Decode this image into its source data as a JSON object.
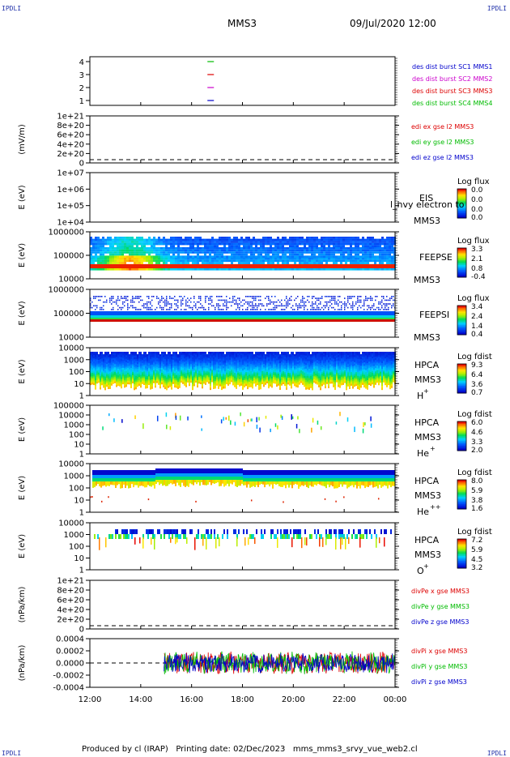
{
  "header": {
    "corner_label": "IPDLI",
    "spacecraft": "MMS3",
    "datetime": "09/Jul/2020 12:00"
  },
  "footer": {
    "text": "Produced by cl (IRAP)   Printing date: 02/Dec/2023   mms_mms3_srvy_vue_web2.cl"
  },
  "colors": {
    "series_blue": "#0000cc",
    "series_magenta": "#cc00cc",
    "series_red": "#dd0000",
    "series_green": "#00bb00"
  },
  "chart_data": [
    {
      "type": "line",
      "panel": "burst",
      "yticks": [
        "4",
        "3",
        "2",
        "1"
      ],
      "legend": [
        {
          "label": "des dist burst SC1 MMS1",
          "color": "#0000cc"
        },
        {
          "label": "des dist burst SC2 MMS2",
          "color": "#cc00cc"
        },
        {
          "label": "des dist burst SC3 MMS3",
          "color": "#dd0000"
        },
        {
          "label": "des dist burst SC4 MMS4",
          "color": "#00bb00"
        }
      ],
      "marks": [
        {
          "sc": 4,
          "t": "16:45",
          "color": "#00bb00"
        },
        {
          "sc": 3,
          "t": "16:45",
          "color": "#dd0000"
        },
        {
          "sc": 2,
          "t": "16:45",
          "color": "#cc00cc"
        },
        {
          "sc": 1,
          "t": "16:45",
          "color": "#0000cc"
        }
      ]
    },
    {
      "type": "line",
      "panel": "edi",
      "ylabel": "(mV/m)",
      "yticks": [
        "1e+21",
        "8e+20",
        "6e+20",
        "4e+20",
        "2e+20",
        "0"
      ],
      "legend": [
        {
          "label": "edi ex gse l2 MMS3",
          "color": "#dd0000"
        },
        {
          "label": "edi ey gse l2 MMS3",
          "color": "#00bb00"
        },
        {
          "label": "edi ez gse l2 MMS3",
          "color": "#0000cc"
        }
      ]
    },
    {
      "type": "heatmap",
      "panel": "eis",
      "ylabel": "E (eV)",
      "yticks": [
        "1e+07",
        "1e+06",
        "1e+05",
        "1e+04"
      ],
      "side_labels": [
        "EIS",
        "MMS3"
      ],
      "overlay_text": "l_hvy electron to",
      "colorbar_title": "Log flux",
      "colorbar_ticks": [
        "0.0",
        "0.0",
        "0.0",
        "0.0"
      ]
    },
    {
      "type": "heatmap",
      "panel": "feepse",
      "ylabel": "E (eV)",
      "yticks": [
        "1000000",
        "100000",
        "10000"
      ],
      "side_labels": [
        "FEEPSE",
        "MMS3"
      ],
      "colorbar_title": "Log flux",
      "colorbar_ticks": [
        "3.3",
        "2.1",
        "0.8",
        "-0.4"
      ]
    },
    {
      "type": "heatmap",
      "panel": "feepsi",
      "ylabel": "E (eV)",
      "yticks": [
        "1000000",
        "100000",
        "10000"
      ],
      "side_labels": [
        "FEEPSI",
        "MMS3"
      ],
      "colorbar_title": "Log flux",
      "colorbar_ticks": [
        "3.4",
        "2.4",
        "1.4",
        "0.4"
      ]
    },
    {
      "type": "heatmap",
      "panel": "hpca_h",
      "ylabel": "E (eV)",
      "yticks": [
        "10000",
        "1000",
        "100",
        "10",
        "1"
      ],
      "side_labels": [
        "HPCA",
        "MMS3"
      ],
      "species": "H",
      "charge": "+",
      "colorbar_title": "Log fdist",
      "colorbar_ticks": [
        "9.3",
        "6.4",
        "3.6",
        "0.7"
      ]
    },
    {
      "type": "heatmap",
      "panel": "hpca_he",
      "ylabel": "E (eV)",
      "yticks": [
        "100000",
        "10000",
        "1000",
        "100",
        "10",
        "1"
      ],
      "side_labels": [
        "HPCA",
        "MMS3"
      ],
      "species": "He",
      "charge": "+",
      "colorbar_title": "Log fdist",
      "colorbar_ticks": [
        "6.0",
        "4.6",
        "3.3",
        "2.0"
      ]
    },
    {
      "type": "heatmap",
      "panel": "hpca_hepp",
      "ylabel": "E (eV)",
      "yticks": [
        "10000",
        "1000",
        "100",
        "10",
        "1"
      ],
      "side_labels": [
        "HPCA",
        "MMS3"
      ],
      "species": "He",
      "charge": "++",
      "colorbar_title": "Log fdist",
      "colorbar_ticks": [
        "8.0",
        "5.9",
        "3.8",
        "1.6"
      ]
    },
    {
      "type": "heatmap",
      "panel": "hpca_o",
      "ylabel": "E (eV)",
      "yticks": [
        "10000",
        "1000",
        "100",
        "10",
        "1"
      ],
      "side_labels": [
        "HPCA",
        "MMS3"
      ],
      "species": "O",
      "charge": "+",
      "colorbar_title": "Log fdist",
      "colorbar_ticks": [
        "7.2",
        "5.9",
        "4.5",
        "3.2"
      ]
    },
    {
      "type": "line",
      "panel": "divpe",
      "ylabel": "(nPa/km)",
      "yticks": [
        "1e+21",
        "8e+20",
        "6e+20",
        "4e+20",
        "2e+20",
        "0"
      ],
      "legend": [
        {
          "label": "divPe x gse MMS3",
          "color": "#dd0000"
        },
        {
          "label": "divPe y gse MMS3",
          "color": "#00bb00"
        },
        {
          "label": "divPe z gse MMS3",
          "color": "#0000cc"
        }
      ]
    },
    {
      "type": "line",
      "panel": "divpi",
      "ylabel": "(nPa/km)",
      "yticks": [
        "0.0004",
        "0.0002",
        "0.0000",
        "-0.0002",
        "-0.0004"
      ],
      "ylim": [
        -0.0005,
        0.0005
      ],
      "legend": [
        {
          "label": "divPi x gse MMS3",
          "color": "#dd0000"
        },
        {
          "label": "divPi y gse MMS3",
          "color": "#00bb00"
        },
        {
          "label": "divPi z gse MMS3",
          "color": "#0000cc"
        }
      ],
      "series": [
        {
          "name": "divPi x gse MMS3",
          "start": "14:55",
          "end": "00:00",
          "amplitude": 0.00025
        },
        {
          "name": "divPi y gse MMS3",
          "start": "14:55",
          "end": "00:00",
          "amplitude": 0.00025
        },
        {
          "name": "divPi z gse MMS3",
          "start": "14:55",
          "end": "00:00",
          "amplitude": 0.00022
        }
      ]
    }
  ],
  "xaxis": {
    "ticks": [
      "12:00",
      "14:00",
      "16:00",
      "18:00",
      "20:00",
      "22:00",
      "00:00"
    ]
  }
}
